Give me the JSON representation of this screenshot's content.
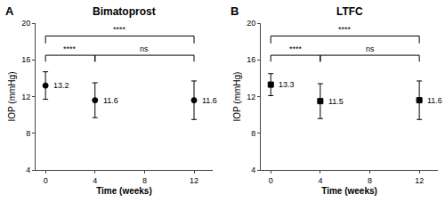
{
  "chart_data": [
    {
      "type": "scatter",
      "title": "Bimatoprost",
      "xlabel": "Time (weeks)",
      "ylabel": "IOP (mmHg)",
      "x": [
        0,
        4,
        12
      ],
      "values": [
        13.2,
        11.6,
        11.6
      ],
      "errors": [
        1.5,
        1.9,
        2.1
      ],
      "color": "#000000",
      "marker": "circle",
      "data_labels": true,
      "xlim": [
        -0.8,
        13.5
      ],
      "xticks": [
        0,
        4,
        8,
        12
      ],
      "ylim": [
        4,
        20
      ],
      "yticks": [
        4,
        8,
        12,
        16,
        20
      ],
      "grid": false,
      "annotations": [
        {
          "text": "A"
        },
        {
          "text": "****",
          "x": [
            0,
            4
          ],
          "y": [
            15.8,
            16.5
          ]
        },
        {
          "text": "****",
          "x": [
            0,
            12
          ],
          "y": [
            17.8,
            18.6
          ]
        },
        {
          "text": "ns",
          "x": [
            4,
            12
          ],
          "y": [
            15.8,
            16.5
          ]
        }
      ]
    },
    {
      "type": "scatter",
      "title": "LTFC",
      "xlabel": "Time (weeks)",
      "ylabel": "IOP (mmHg)",
      "x": [
        0,
        4,
        12
      ],
      "values": [
        13.3,
        11.5,
        11.6
      ],
      "errors": [
        1.2,
        1.9,
        2.1
      ],
      "color": "#000000",
      "marker": "square",
      "data_labels": true,
      "xlim": [
        -0.8,
        13.5
      ],
      "xticks": [
        0,
        4,
        8,
        12
      ],
      "ylim": [
        4,
        20
      ],
      "yticks": [
        4,
        8,
        12,
        16,
        20
      ],
      "grid": false,
      "annotations": [
        {
          "text": "B"
        },
        {
          "text": "****",
          "x": [
            0,
            4
          ],
          "y": [
            15.8,
            16.5
          ]
        },
        {
          "text": "****",
          "x": [
            0,
            12
          ],
          "y": [
            17.8,
            18.6
          ]
        },
        {
          "text": "ns",
          "x": [
            4,
            12
          ],
          "y": [
            15.8,
            16.5
          ]
        }
      ]
    }
  ]
}
